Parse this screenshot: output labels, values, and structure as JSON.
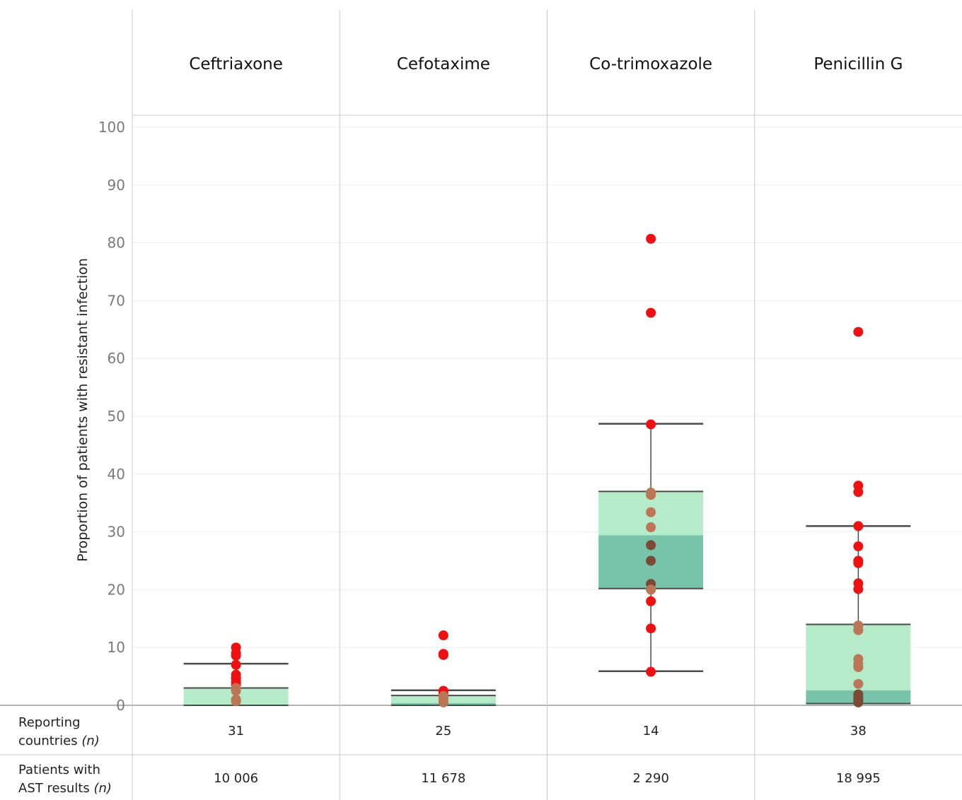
{
  "chart_data": {
    "type": "box",
    "ylabel": "Proportion of patients with resistant infection",
    "ylim": [
      0,
      100
    ],
    "yticks": [
      "0",
      "10",
      "20",
      "30",
      "40",
      "50",
      "60",
      "70",
      "80",
      "90",
      "100"
    ],
    "grid": true,
    "categories": [
      "Ceftriaxone",
      "Cefotaxime",
      "Co-trimoxazole",
      "Penicillin G"
    ],
    "boxes": [
      {
        "name": "Ceftriaxone",
        "whisker_low": 0,
        "q1": 0,
        "median": 0,
        "q3": 3,
        "whisker_high": 7.2,
        "points": [
          10,
          9,
          8.6,
          7,
          5.3,
          4.8,
          4.6,
          4,
          3.6,
          3,
          2.5,
          1,
          0.7
        ]
      },
      {
        "name": "Cefotaxime",
        "whisker_low": 0,
        "q1": 0,
        "median": 0.4,
        "q3": 1.7,
        "whisker_high": 2.6,
        "points": [
          12.1,
          8.9,
          8.7,
          2.5,
          2.1,
          1.6,
          1.3,
          0.9,
          0.5
        ]
      },
      {
        "name": "Co-trimoxazole",
        "whisker_low": 5.9,
        "q1": 20.2,
        "median": 29.4,
        "q3": 37,
        "whisker_high": 48.7,
        "points": [
          80.7,
          67.9,
          48.6,
          36.8,
          36.4,
          33.4,
          30.8,
          27.7,
          25,
          21,
          20,
          18,
          13.3,
          5.8
        ]
      },
      {
        "name": "Penicillin G",
        "whisker_low": 0,
        "q1": 0.3,
        "median": 2.6,
        "q3": 14,
        "whisker_high": 31,
        "points": [
          64.6,
          38,
          36.9,
          31,
          27.5,
          25,
          24.6,
          21.1,
          20.1,
          13.8,
          13,
          8,
          7.2,
          6.6,
          3.7,
          1.9,
          1.4,
          1.1,
          0.8,
          0.5
        ]
      }
    ],
    "colors": {
      "outer_box": "#b5ebc9",
      "inner_box": "#78c4aa",
      "whisker": "#4a4a4a",
      "point_outer": "#ee1111",
      "point_mid": "#bb7755",
      "point_inner": "#7a4a35"
    }
  },
  "table": {
    "rows": [
      {
        "label_line1": "Reporting",
        "label_line2": "countries",
        "label_suffix": "(n)",
        "values": [
          "31",
          "25",
          "14",
          "38"
        ]
      },
      {
        "label_line1": "Patients with",
        "label_line2": "AST results",
        "label_suffix": "(n)",
        "values": [
          "10 006",
          "11 678",
          "2 290",
          "18 995"
        ]
      }
    ]
  }
}
